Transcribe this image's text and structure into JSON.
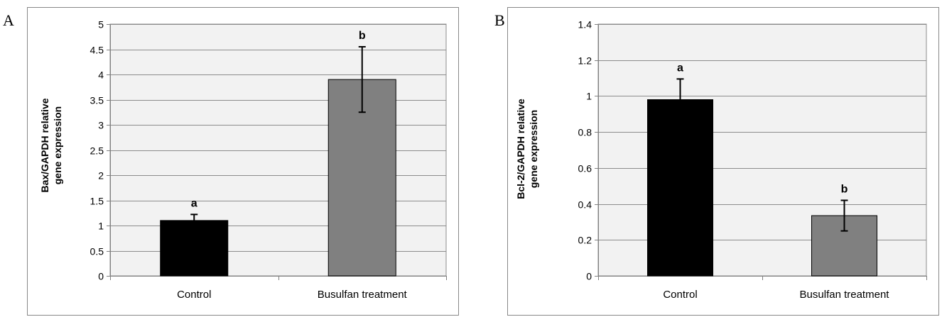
{
  "panels": [
    {
      "letter": "A"
    },
    {
      "letter": "B"
    }
  ],
  "chart_data": [
    {
      "type": "bar",
      "categories": [
        "Control",
        "Busulfan treatment"
      ],
      "values": [
        1.1,
        3.9
      ],
      "errors": [
        0.12,
        0.65
      ],
      "significance": [
        "a",
        "b"
      ],
      "bar_colors": [
        "#000000",
        "#808080"
      ],
      "ylabel_lines": [
        "Bax/GAPDH relative",
        "gene expression"
      ],
      "ylim": [
        0,
        5
      ],
      "yticks": [
        0,
        0.5,
        1,
        1.5,
        2,
        2.5,
        3,
        3.5,
        4,
        4.5,
        5
      ],
      "ytick_labels": [
        "0",
        "0.5",
        "1",
        "1.5",
        "2",
        "2.5",
        "3",
        "3.5",
        "4",
        "4.5",
        "5"
      ],
      "grid": true,
      "plot_background": "#f2f2f2"
    },
    {
      "type": "bar",
      "categories": [
        "Control",
        "Busulfan treatment"
      ],
      "values": [
        0.98,
        0.335
      ],
      "errors": [
        0.115,
        0.085
      ],
      "significance": [
        "a",
        "b"
      ],
      "bar_colors": [
        "#000000",
        "#808080"
      ],
      "ylabel_lines": [
        "Bcl-2/GAPDH relative",
        "gene expression"
      ],
      "ylim": [
        0,
        1.4
      ],
      "yticks": [
        0,
        0.2,
        0.4,
        0.6,
        0.8,
        1,
        1.2,
        1.4
      ],
      "ytick_labels": [
        "0",
        "0.2",
        "0.4",
        "0.6",
        "0.8",
        "1",
        "1.2",
        "1.4"
      ],
      "grid": true,
      "plot_background": "#f2f2f2"
    }
  ]
}
